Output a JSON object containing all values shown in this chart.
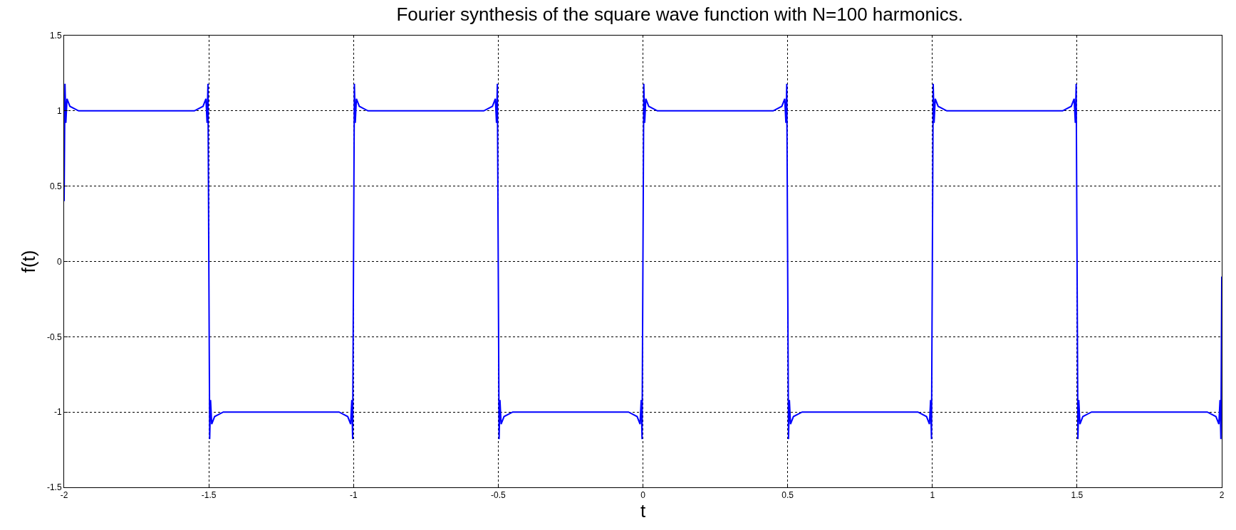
{
  "chart_data": {
    "type": "line",
    "title": "Fourier synthesis of the square wave function with N=100 harmonics.",
    "xlabel": "t",
    "ylabel": "f(t)",
    "x": [
      -2,
      -1.997,
      -1.994,
      -1.99,
      -1.98,
      -1.95,
      -1.55,
      -1.52,
      -1.51,
      -1.506,
      -1.503,
      -1.5,
      -1.497,
      -1.494,
      -1.49,
      -1.48,
      -1.45,
      -1.05,
      -1.02,
      -1.01,
      -1.006,
      -1.003,
      -1,
      -0.997,
      -0.994,
      -0.99,
      -0.98,
      -0.95,
      -0.55,
      -0.52,
      -0.51,
      -0.506,
      -0.503,
      -0.5,
      -0.497,
      -0.494,
      -0.49,
      -0.48,
      -0.45,
      -0.05,
      -0.02,
      -0.01,
      -0.006,
      -0.003,
      0,
      0.003,
      0.006,
      0.01,
      0.02,
      0.05,
      0.45,
      0.48,
      0.49,
      0.494,
      0.497,
      0.5,
      0.503,
      0.506,
      0.51,
      0.52,
      0.55,
      0.95,
      0.98,
      0.99,
      0.994,
      0.997,
      1,
      1.003,
      1.006,
      1.01,
      1.02,
      1.05,
      1.45,
      1.48,
      1.49,
      1.494,
      1.497,
      1.5,
      1.503,
      1.506,
      1.51,
      1.52,
      1.55,
      1.95,
      1.98,
      1.99,
      1.994,
      1.997,
      2
    ],
    "series": [
      {
        "color": "#0000ff",
        "values": [
          0.4,
          1.18,
          0.92,
          1.08,
          1.03,
          1.0,
          1.0,
          1.03,
          1.08,
          0.92,
          1.18,
          0,
          -1.18,
          -0.92,
          -1.08,
          -1.03,
          -1.0,
          -1.0,
          -1.03,
          -1.08,
          -0.92,
          -1.18,
          0,
          1.18,
          0.92,
          1.08,
          1.03,
          1.0,
          1.0,
          1.03,
          1.08,
          0.92,
          1.18,
          0,
          -1.18,
          -0.92,
          -1.08,
          -1.03,
          -1.0,
          -1.0,
          -1.03,
          -1.08,
          -0.92,
          -1.18,
          0,
          1.18,
          0.92,
          1.08,
          1.03,
          1.0,
          1.0,
          1.03,
          1.08,
          0.92,
          1.18,
          0,
          -1.18,
          -0.92,
          -1.08,
          -1.03,
          -1.0,
          -1.0,
          -1.03,
          -1.08,
          -0.92,
          -1.18,
          0,
          1.18,
          0.92,
          1.08,
          1.03,
          1.0,
          1.0,
          1.03,
          1.08,
          0.92,
          1.18,
          0,
          -1.18,
          -0.92,
          -1.08,
          -1.03,
          -1.0,
          -1.0,
          -1.03,
          -1.08,
          -0.92,
          -1.18,
          -0.1
        ]
      }
    ],
    "xlim": [
      -2,
      2
    ],
    "xticks": [
      -2,
      -1.5,
      -1,
      -0.5,
      0,
      0.5,
      1,
      1.5,
      2
    ],
    "ylim": [
      -1.5,
      1.5
    ],
    "yticks": [
      -1.5,
      -1,
      -0.5,
      0,
      0.5,
      1,
      1.5
    ],
    "grid": true,
    "line_style": "solid",
    "marker": "none"
  }
}
